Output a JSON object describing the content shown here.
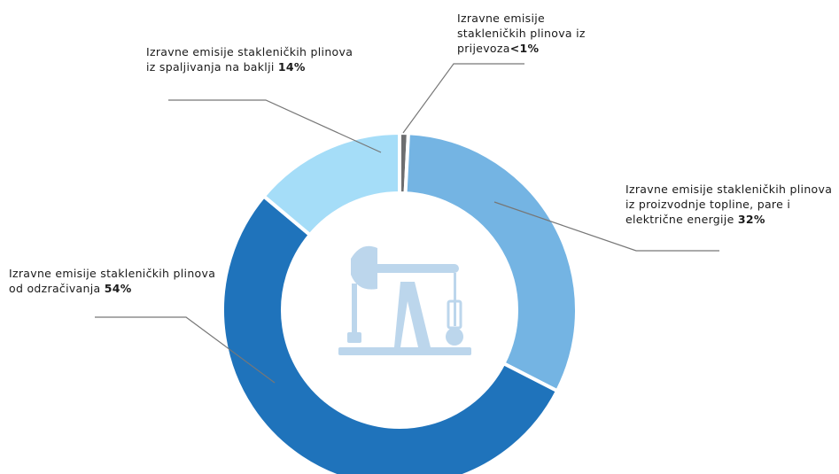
{
  "chart_data": {
    "type": "donut",
    "categories": [
      "Izravne emisije stakleničkih plinova iz prijevoza",
      "Izravne emisije stakleničkih plinova iz proizvodnje topline, pare i električne energije",
      "Izravne emisije stakleničkih plinova od odzračivanja",
      "Izravne emisije stakleničkih plinova iz spaljivanja na baklji"
    ],
    "values": [
      0.8,
      32,
      54,
      14
    ],
    "value_labels": [
      "<1%",
      "32%",
      "54%",
      "14%"
    ],
    "colors": [
      "#6d6e70",
      "#74b4e3",
      "#1f73bb",
      "#a5ddf8"
    ]
  }
}
